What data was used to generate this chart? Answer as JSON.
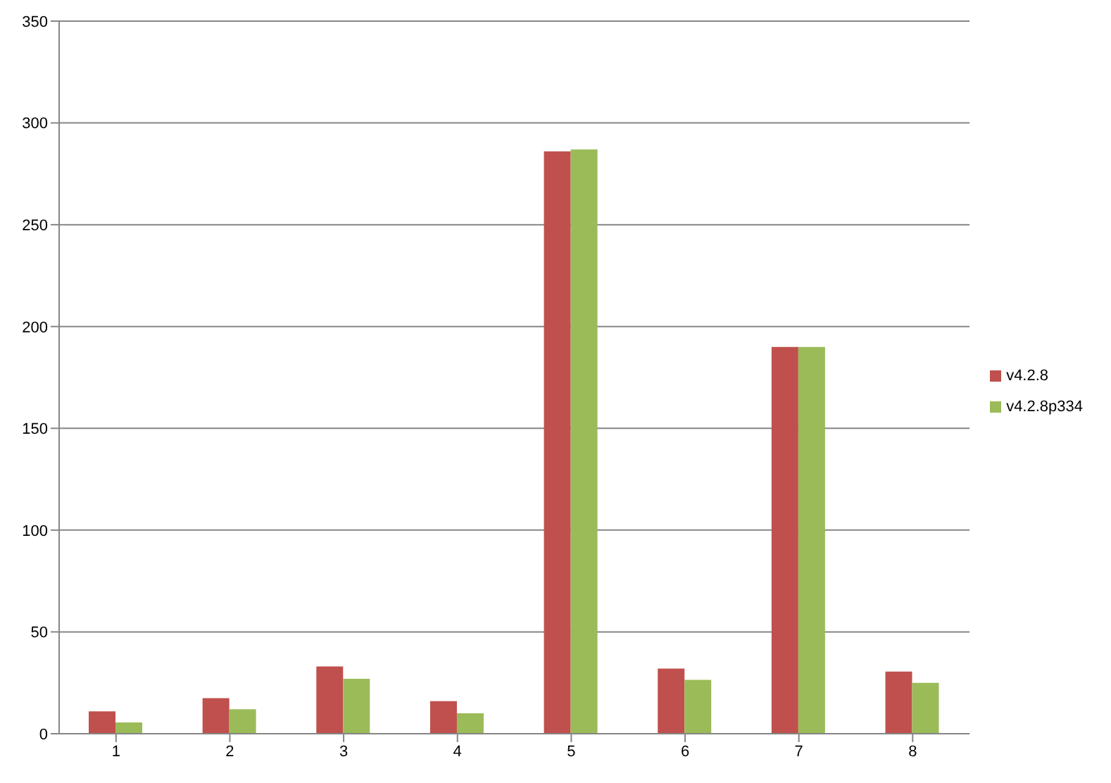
{
  "chart_data": {
    "type": "bar",
    "categories": [
      "1",
      "2",
      "3",
      "4",
      "5",
      "6",
      "7",
      "8"
    ],
    "series": [
      {
        "name": "v4.2.8",
        "color": "#c0504d",
        "values": [
          11,
          17.5,
          33,
          16,
          286,
          32,
          190,
          30.5
        ]
      },
      {
        "name": "v4.2.8p334",
        "color": "#9bbb59",
        "values": [
          5.5,
          12,
          27,
          10,
          287,
          26.5,
          190,
          25
        ]
      }
    ],
    "ylim": [
      0,
      350
    ],
    "yticks": [
      0,
      50,
      100,
      150,
      200,
      250,
      300,
      350
    ],
    "grid": "y",
    "legend": "right"
  }
}
